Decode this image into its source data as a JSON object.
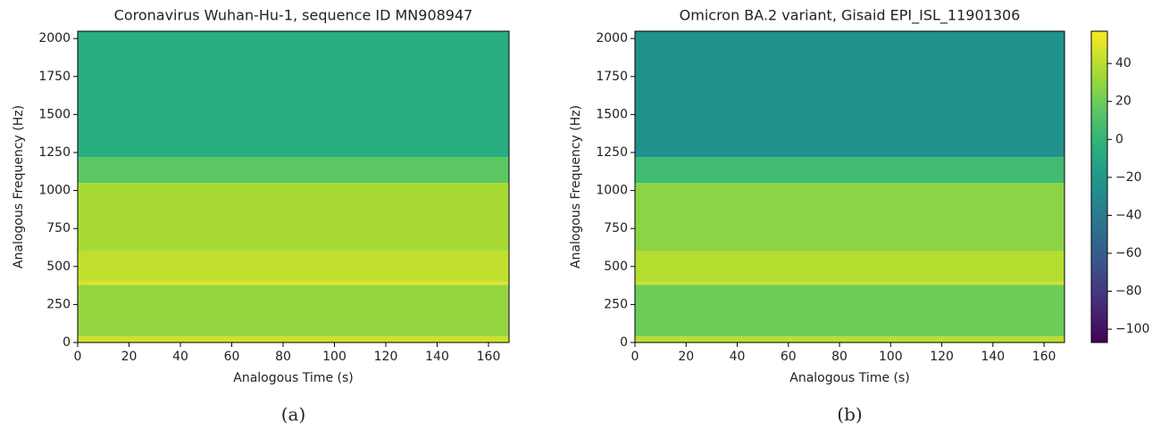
{
  "chart_data": [
    {
      "type": "spectrogram",
      "title": "Coronavirus Wuhan-Hu-1, sequence ID MN908947",
      "xlabel": "Analogous Time (s)",
      "ylabel": "Analogous Frequency (Hz)",
      "caption": "(a)",
      "xlim": [
        0,
        168
      ],
      "xticks": [
        0,
        20,
        40,
        60,
        80,
        100,
        120,
        140,
        160
      ],
      "ylim": [
        0,
        2048
      ],
      "yticks": [
        0,
        250,
        500,
        750,
        1000,
        1250,
        1500,
        1750,
        2000
      ],
      "colormap": "viridis",
      "clim": [
        -107,
        57
      ],
      "freq_bins": [
        0,
        40,
        380,
        400,
        600,
        1050,
        1220,
        2048
      ],
      "values": [
        45,
        30,
        50,
        42,
        35,
        15,
        -5
      ]
    },
    {
      "type": "spectrogram",
      "title": "Omicron BA.2 variant, Gisaid EPI_ISL_11901306",
      "xlabel": "Analogous Time (s)",
      "ylabel": "Analogous Frequency (Hz)",
      "caption": "(b)",
      "xlim": [
        0,
        168
      ],
      "xticks": [
        0,
        20,
        40,
        60,
        80,
        100,
        120,
        140,
        160
      ],
      "ylim": [
        0,
        2048
      ],
      "yticks": [
        0,
        250,
        500,
        750,
        1000,
        1250,
        1500,
        1750,
        2000
      ],
      "colormap": "viridis",
      "clim": [
        -107,
        57
      ],
      "freq_bins": [
        0,
        40,
        380,
        400,
        600,
        1050,
        1220,
        2048
      ],
      "values": [
        40,
        20,
        45,
        38,
        28,
        5,
        -25
      ],
      "colorbar": {
        "lim": [
          -107,
          57
        ],
        "ticks": [
          40,
          20,
          0,
          {
            "value": -20,
            "label": "−20"
          },
          {
            "value": -40,
            "label": "−40"
          },
          {
            "value": -60,
            "label": "−60"
          },
          {
            "value": -80,
            "label": "−80"
          },
          {
            "value": -100,
            "label": "−100"
          }
        ]
      }
    }
  ]
}
